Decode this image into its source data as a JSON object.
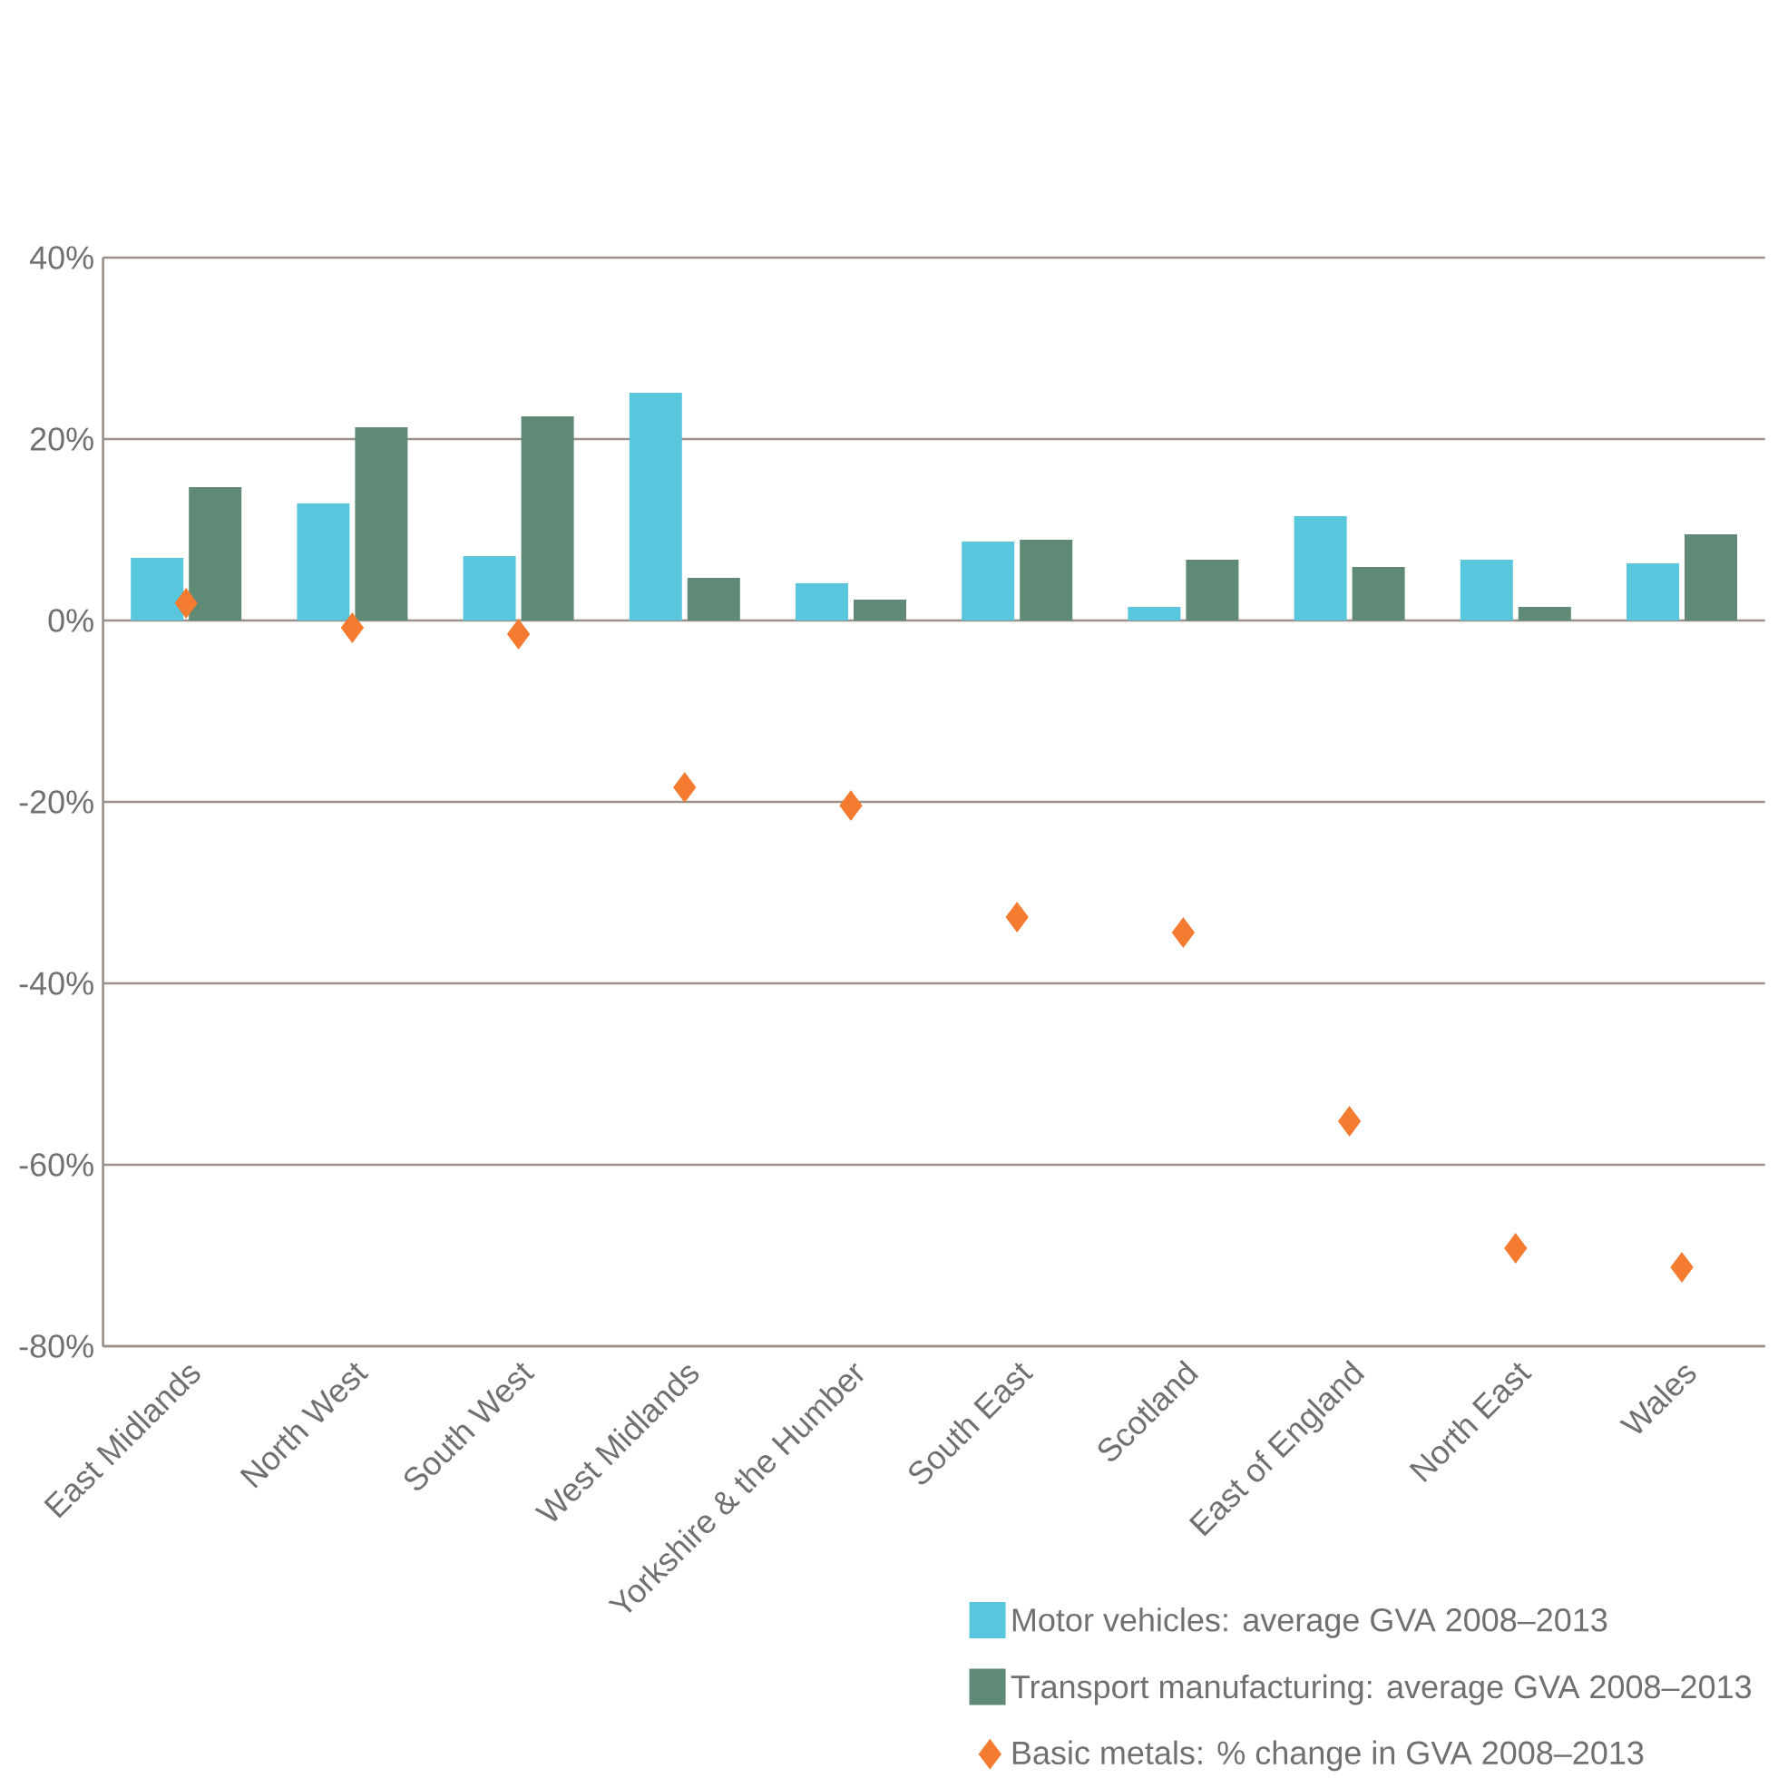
{
  "chart_data": {
    "type": "bar",
    "categories": [
      "East Midlands",
      "North West",
      "South West",
      "West Midlands",
      "Yorkshire & the Humber",
      "South East",
      "Scotland",
      "East of England",
      "North East",
      "Wales"
    ],
    "series": [
      {
        "name": "Motor vehicles: average GVA 2008–2013",
        "color": "#58c6dc",
        "values": [
          6.9,
          12.9,
          7.1,
          25.1,
          4.1,
          8.7,
          1.5,
          11.5,
          6.7,
          6.3
        ]
      },
      {
        "name": "Transport manufacturing: average GVA 2008–2013",
        "color": "#5f8b76",
        "values": [
          14.7,
          21.3,
          22.5,
          4.7,
          2.3,
          8.9,
          6.7,
          5.9,
          1.5,
          9.5
        ]
      },
      {
        "name": "Basic metals: % change in GVA 2008–2013",
        "color": "#f47b30",
        "type": "scatter",
        "marker": "diamond",
        "values": [
          1.9,
          -0.8,
          -1.5,
          -18.4,
          -20.4,
          -32.7,
          -34.4,
          -55.2,
          -69.2,
          -71.3
        ]
      }
    ],
    "ylim": [
      -80,
      40
    ],
    "yticks": [
      {
        "value": -80,
        "label": "-80%"
      },
      {
        "value": -60,
        "label": "-60%"
      },
      {
        "value": -40,
        "label": "-40%"
      },
      {
        "value": -20,
        "label": "-20%"
      },
      {
        "value": 0,
        "label": "0%"
      },
      {
        "value": 20,
        "label": "20%"
      },
      {
        "value": 40,
        "label": "40%"
      }
    ],
    "grid": "y",
    "legend": "bottom right"
  }
}
